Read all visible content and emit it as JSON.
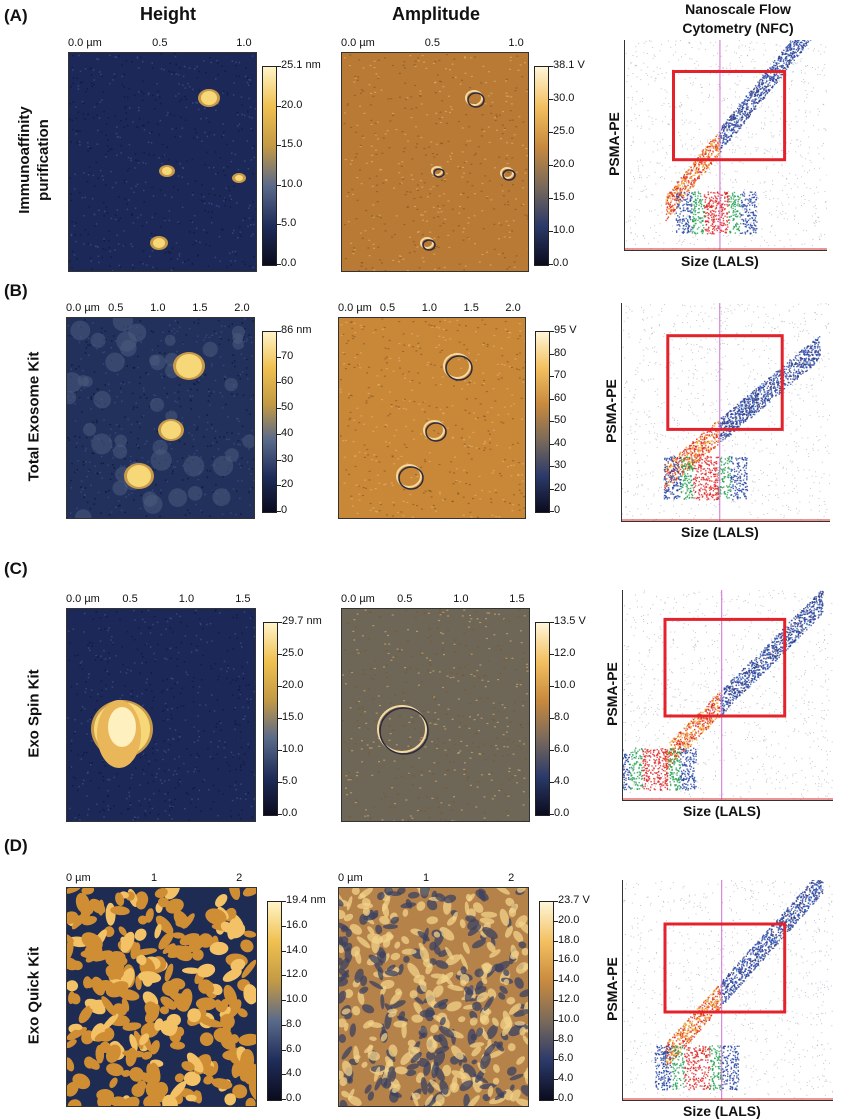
{
  "headers": {
    "height": "Height",
    "amplitude": "Amplitude",
    "nfc_line1": "Nanoscale Flow",
    "nfc_line2": "Cytometry (NFC)"
  },
  "rows": [
    {
      "letter": "(A)",
      "label_line1": "Immunoaffinity",
      "label_line2": "purification",
      "height_scale": [
        "0.0 µm",
        "0.5",
        "1.0"
      ],
      "height_cbar": [
        "25.1 nm",
        "20.0",
        "15.0",
        "10.0",
        "5.0",
        "0.0"
      ],
      "amp_scale": [
        "0.0 µm",
        "0.5",
        "1.0"
      ],
      "amp_cbar": [
        "38.1 V",
        "30.0",
        "25.0",
        "20.0",
        "15.0",
        "10.0",
        "0.0"
      ],
      "nfc_ylabel": "PSMA-PE",
      "nfc_xlabel": "Size (LALS)"
    },
    {
      "letter": "(B)",
      "label_line1": "Total Exosome Kit",
      "label_line2": "",
      "height_scale": [
        "0.0 µm",
        "0.5",
        "1.0",
        "1.5",
        "2.0"
      ],
      "height_cbar": [
        "86 nm",
        "70",
        "60",
        "50",
        "40",
        "30",
        "20",
        "0"
      ],
      "amp_scale": [
        "0.0 µm",
        "0.5",
        "1.0",
        "1.5",
        "2.0"
      ],
      "amp_cbar": [
        "95 V",
        "80",
        "70",
        "60",
        "50",
        "40",
        "30",
        "20",
        "0"
      ],
      "nfc_ylabel": "PSMA-PE",
      "nfc_xlabel": "Size (LALS)"
    },
    {
      "letter": "(C)",
      "label_line1": "Exo Spin Kit",
      "label_line2": "",
      "height_scale": [
        "0.0 µm",
        "0.5",
        "1.0",
        "1.5"
      ],
      "height_cbar": [
        "29.7 nm",
        "25.0",
        "20.0",
        "15.0",
        "10.0",
        "5.0",
        "0.0"
      ],
      "amp_scale": [
        "0.0 µm",
        "0.5",
        "1.0",
        "1.5"
      ],
      "amp_cbar": [
        "13.5 V",
        "12.0",
        "10.0",
        "8.0",
        "6.0",
        "4.0",
        "0.0"
      ],
      "nfc_ylabel": "PSMA-PE",
      "nfc_xlabel": "Size (LALS)"
    },
    {
      "letter": "(D)",
      "label_line1": "Exo Quick Kit",
      "label_line2": "",
      "height_scale": [
        "0 µm",
        "1",
        "2"
      ],
      "height_cbar": [
        "19.4 nm",
        "16.0",
        "14.0",
        "12.0",
        "10.0",
        "8.0",
        "6.0",
        "4.0",
        "0.0"
      ],
      "amp_scale": [
        "0 µm",
        "1",
        "2"
      ],
      "amp_cbar": [
        "23.7 V",
        "20.0",
        "18.0",
        "16.0",
        "14.0",
        "12.0",
        "10.0",
        "8.0",
        "6.0",
        "4.0",
        "0.0"
      ],
      "nfc_ylabel": "PSMA-PE",
      "nfc_xlabel": "Size (LALS)"
    }
  ],
  "colors": {
    "height_map": [
      "#0b0b1e",
      "#1f2d5a",
      "#5a6a8a",
      "#c39a45",
      "#f0c050",
      "#fff4c8"
    ],
    "amplitude_map": [
      "#0b0b1e",
      "#2b3a6a",
      "#7a6a5a",
      "#c98a3e",
      "#f3c060",
      "#fff6d8"
    ],
    "gate": "#e3222b",
    "nfc_line": "#d070d0"
  }
}
